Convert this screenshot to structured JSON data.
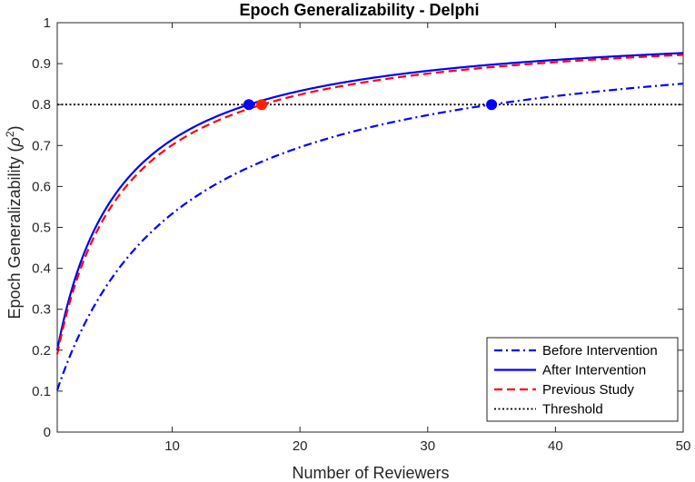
{
  "chart_data": {
    "type": "line",
    "title": "Epoch Generalizability - Delphi",
    "xlabel": "Number of Reviewers",
    "ylabel_main": "Epoch Generalizability (",
    "ylabel_symbol": "ρ",
    "ylabel_superscript": "2",
    "ylabel_close": ")",
    "xlim": [
      1,
      50
    ],
    "ylim": [
      0,
      1
    ],
    "xticks": [
      10,
      20,
      30,
      40,
      50
    ],
    "yticks": [
      0,
      0.1,
      0.2,
      0.3,
      0.4,
      0.5,
      0.6,
      0.7,
      0.8,
      0.9,
      1
    ],
    "ytick_labels": [
      "0",
      "0.1",
      "0.2",
      "0.3",
      "0.4",
      "0.5",
      "0.6",
      "0.7",
      "0.8",
      "0.9",
      "1"
    ],
    "grid": false,
    "legend_position": "bottom-right",
    "series": [
      {
        "name": "Before Intervention",
        "single_rater_reliability": 0.1026,
        "color": "#0000ff",
        "style": "dashdot"
      },
      {
        "name": "After Intervention",
        "single_rater_reliability": 0.2,
        "color": "#0000ff",
        "style": "solid"
      },
      {
        "name": "Previous Study",
        "single_rater_reliability": 0.19,
        "color": "#ff0000",
        "style": "dashed"
      },
      {
        "name": "Threshold",
        "constant": 0.8,
        "color": "#000000",
        "style": "dotted"
      }
    ],
    "markers": [
      {
        "x": 16,
        "y": 0.8,
        "color": "#0000ff"
      },
      {
        "x": 17,
        "y": 0.8,
        "color": "#ff2200"
      },
      {
        "x": 35,
        "y": 0.8,
        "color": "#0000ff"
      }
    ]
  }
}
